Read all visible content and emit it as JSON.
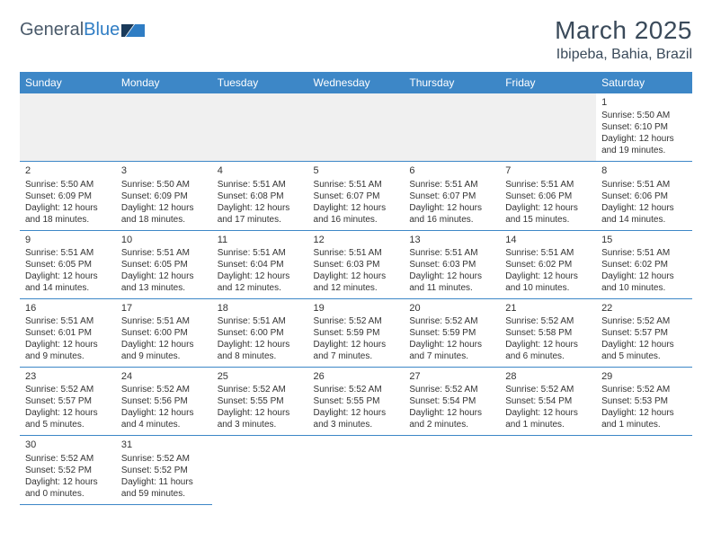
{
  "logo": {
    "text_general": "General",
    "text_blue": "Blue"
  },
  "title": "March 2025",
  "location": "Ibipeba, Bahia, Brazil",
  "colors": {
    "header_bg": "#3d87c7",
    "header_text": "#ffffff",
    "row_border": "#3d87c7",
    "logo_gray": "#4a5a6a",
    "logo_blue": "#2f7dc4",
    "page_bg": "#ffffff",
    "empty_cell_bg": "#f0f0f0",
    "text": "#333333"
  },
  "typography": {
    "title_fontsize": 28,
    "location_fontsize": 16,
    "dayheader_fontsize": 12,
    "cell_fontsize": 10,
    "daynum_fontsize": 11
  },
  "day_headers": [
    "Sunday",
    "Monday",
    "Tuesday",
    "Wednesday",
    "Thursday",
    "Friday",
    "Saturday"
  ],
  "weeks": [
    [
      null,
      null,
      null,
      null,
      null,
      null,
      {
        "n": "1",
        "sunrise": "5:50 AM",
        "sunset": "6:10 PM",
        "daylight_h": "12",
        "daylight_m": "19"
      }
    ],
    [
      {
        "n": "2",
        "sunrise": "5:50 AM",
        "sunset": "6:09 PM",
        "daylight_h": "12",
        "daylight_m": "18"
      },
      {
        "n": "3",
        "sunrise": "5:50 AM",
        "sunset": "6:09 PM",
        "daylight_h": "12",
        "daylight_m": "18"
      },
      {
        "n": "4",
        "sunrise": "5:51 AM",
        "sunset": "6:08 PM",
        "daylight_h": "12",
        "daylight_m": "17"
      },
      {
        "n": "5",
        "sunrise": "5:51 AM",
        "sunset": "6:07 PM",
        "daylight_h": "12",
        "daylight_m": "16"
      },
      {
        "n": "6",
        "sunrise": "5:51 AM",
        "sunset": "6:07 PM",
        "daylight_h": "12",
        "daylight_m": "16"
      },
      {
        "n": "7",
        "sunrise": "5:51 AM",
        "sunset": "6:06 PM",
        "daylight_h": "12",
        "daylight_m": "15"
      },
      {
        "n": "8",
        "sunrise": "5:51 AM",
        "sunset": "6:06 PM",
        "daylight_h": "12",
        "daylight_m": "14"
      }
    ],
    [
      {
        "n": "9",
        "sunrise": "5:51 AM",
        "sunset": "6:05 PM",
        "daylight_h": "12",
        "daylight_m": "14"
      },
      {
        "n": "10",
        "sunrise": "5:51 AM",
        "sunset": "6:05 PM",
        "daylight_h": "12",
        "daylight_m": "13"
      },
      {
        "n": "11",
        "sunrise": "5:51 AM",
        "sunset": "6:04 PM",
        "daylight_h": "12",
        "daylight_m": "12"
      },
      {
        "n": "12",
        "sunrise": "5:51 AM",
        "sunset": "6:03 PM",
        "daylight_h": "12",
        "daylight_m": "12"
      },
      {
        "n": "13",
        "sunrise": "5:51 AM",
        "sunset": "6:03 PM",
        "daylight_h": "12",
        "daylight_m": "11"
      },
      {
        "n": "14",
        "sunrise": "5:51 AM",
        "sunset": "6:02 PM",
        "daylight_h": "12",
        "daylight_m": "10"
      },
      {
        "n": "15",
        "sunrise": "5:51 AM",
        "sunset": "6:02 PM",
        "daylight_h": "12",
        "daylight_m": "10"
      }
    ],
    [
      {
        "n": "16",
        "sunrise": "5:51 AM",
        "sunset": "6:01 PM",
        "daylight_h": "12",
        "daylight_m": "9"
      },
      {
        "n": "17",
        "sunrise": "5:51 AM",
        "sunset": "6:00 PM",
        "daylight_h": "12",
        "daylight_m": "9"
      },
      {
        "n": "18",
        "sunrise": "5:51 AM",
        "sunset": "6:00 PM",
        "daylight_h": "12",
        "daylight_m": "8"
      },
      {
        "n": "19",
        "sunrise": "5:52 AM",
        "sunset": "5:59 PM",
        "daylight_h": "12",
        "daylight_m": "7"
      },
      {
        "n": "20",
        "sunrise": "5:52 AM",
        "sunset": "5:59 PM",
        "daylight_h": "12",
        "daylight_m": "7"
      },
      {
        "n": "21",
        "sunrise": "5:52 AM",
        "sunset": "5:58 PM",
        "daylight_h": "12",
        "daylight_m": "6"
      },
      {
        "n": "22",
        "sunrise": "5:52 AM",
        "sunset": "5:57 PM",
        "daylight_h": "12",
        "daylight_m": "5"
      }
    ],
    [
      {
        "n": "23",
        "sunrise": "5:52 AM",
        "sunset": "5:57 PM",
        "daylight_h": "12",
        "daylight_m": "5"
      },
      {
        "n": "24",
        "sunrise": "5:52 AM",
        "sunset": "5:56 PM",
        "daylight_h": "12",
        "daylight_m": "4"
      },
      {
        "n": "25",
        "sunrise": "5:52 AM",
        "sunset": "5:55 PM",
        "daylight_h": "12",
        "daylight_m": "3"
      },
      {
        "n": "26",
        "sunrise": "5:52 AM",
        "sunset": "5:55 PM",
        "daylight_h": "12",
        "daylight_m": "3"
      },
      {
        "n": "27",
        "sunrise": "5:52 AM",
        "sunset": "5:54 PM",
        "daylight_h": "12",
        "daylight_m": "2"
      },
      {
        "n": "28",
        "sunrise": "5:52 AM",
        "sunset": "5:54 PM",
        "daylight_h": "12",
        "daylight_m": "1"
      },
      {
        "n": "29",
        "sunrise": "5:52 AM",
        "sunset": "5:53 PM",
        "daylight_h": "12",
        "daylight_m": "1"
      }
    ],
    [
      {
        "n": "30",
        "sunrise": "5:52 AM",
        "sunset": "5:52 PM",
        "daylight_h": "12",
        "daylight_m": "0"
      },
      {
        "n": "31",
        "sunrise": "5:52 AM",
        "sunset": "5:52 PM",
        "daylight_h": "11",
        "daylight_m": "59"
      },
      null,
      null,
      null,
      null,
      null
    ]
  ],
  "labels": {
    "sunrise_prefix": "Sunrise: ",
    "sunset_prefix": "Sunset: ",
    "daylight_prefix": "Daylight: ",
    "hours_word": " hours",
    "and_word": "and ",
    "minutes_word": " minutes."
  }
}
